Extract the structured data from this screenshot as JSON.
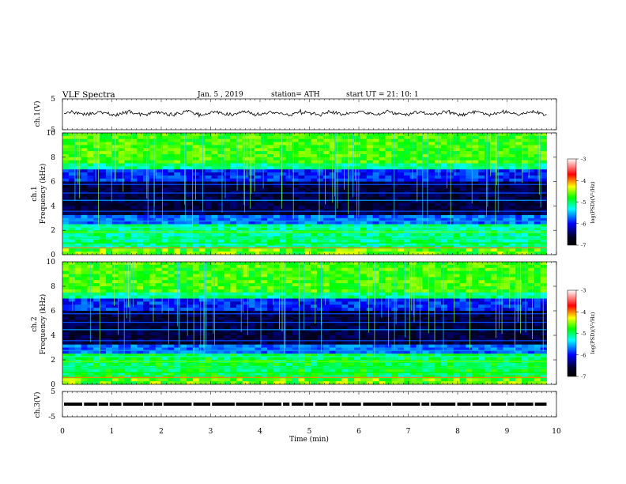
{
  "header": {
    "title": "VLF  Spectra",
    "date": "Jan.  5  , 2019",
    "station": "station= ATH",
    "start_ut": "start  UT  =    21: 10: 1"
  },
  "chart_data": [
    {
      "type": "line",
      "name": "ch1-waveform",
      "ylabel": "ch.1(V)",
      "ylim": [
        -5,
        5
      ],
      "yticks": [
        "5",
        "-5"
      ],
      "xlim": [
        0,
        10
      ],
      "baseline_v": 0.3,
      "trace_color": "#000000"
    },
    {
      "type": "heatmap",
      "name": "ch1-spectrogram",
      "ylabel": "ch.1\nFrequency (kHz)",
      "ylim": [
        0,
        10
      ],
      "yticks": [
        "0",
        "2",
        "4",
        "6",
        "8",
        "10"
      ],
      "xlim": [
        0,
        9.8
      ],
      "colorbar": {
        "label": "log(PSD)(V²/Hz)",
        "range": [
          -7,
          -3
        ],
        "ticks": [
          "-3",
          "-4",
          "-5",
          "-6",
          "-7"
        ]
      }
    },
    {
      "type": "heatmap",
      "name": "ch2-spectrogram",
      "ylabel": "ch.2\nFrequency (kHz)",
      "ylim": [
        0,
        10
      ],
      "yticks": [
        "0",
        "2",
        "4",
        "6",
        "8",
        "10"
      ],
      "xlim": [
        0,
        9.8
      ],
      "colorbar": {
        "label": "log(PSD)(V²/Hz)",
        "range": [
          -7,
          -3
        ],
        "ticks": [
          "-3",
          "-4",
          "-5",
          "-6",
          "-7"
        ]
      }
    },
    {
      "type": "line",
      "name": "ch3-signal",
      "ylabel": "ch.3(V)",
      "ylim": [
        -5,
        5
      ],
      "yticks": [
        "5",
        "-5"
      ],
      "xlim": [
        0,
        10
      ],
      "baseline_v": 0.0,
      "trace_color": "#000000"
    }
  ],
  "xaxis": {
    "label": "Time  (min)",
    "range": [
      0,
      10
    ],
    "ticks": [
      "0",
      "1",
      "2",
      "3",
      "4",
      "5",
      "6",
      "7",
      "8",
      "9",
      "10"
    ]
  }
}
